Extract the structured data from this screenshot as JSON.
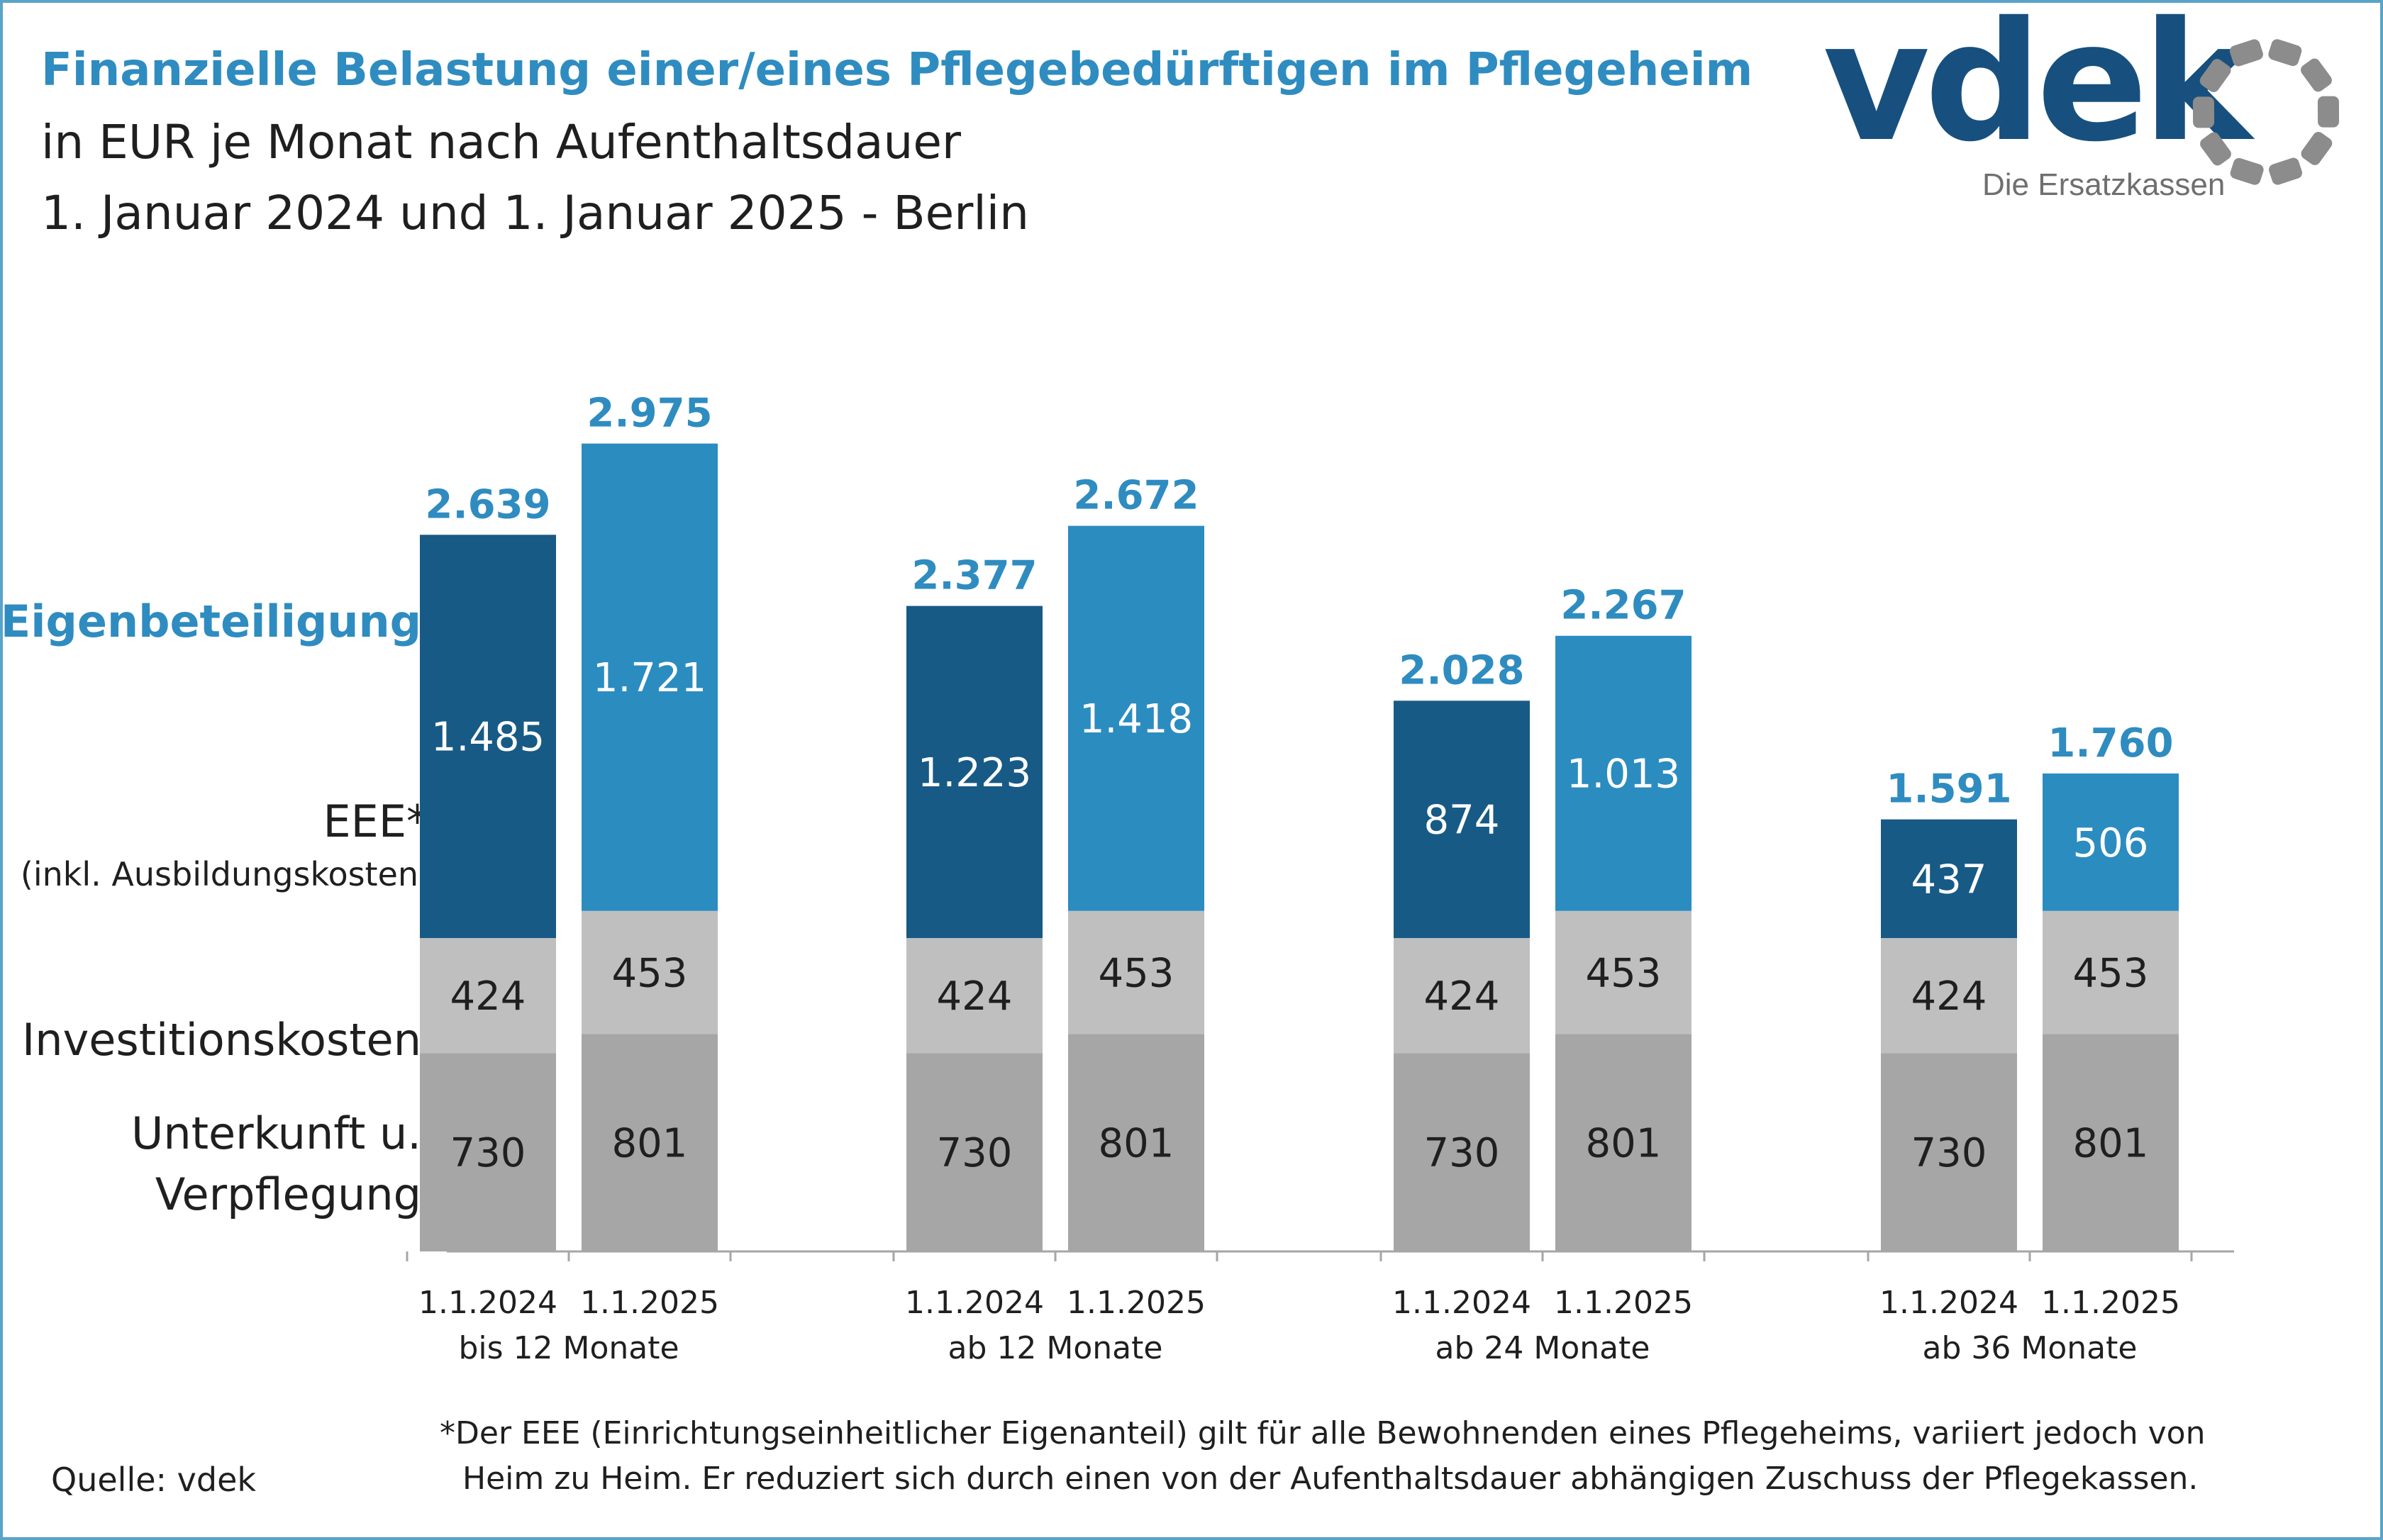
{
  "header": {
    "title": "Finanzielle Belastung einer/eines Pflegebedürftigen im Pflegeheim",
    "subtitle": "in EUR je Monat nach Aufenthaltsdauer",
    "daterange": "1. Januar 2024 und 1. Januar 2025 - Berlin"
  },
  "logo": {
    "text": "vdek",
    "tagline": "Die Ersatzkassen",
    "icon": "vdek-circle-logo-icon",
    "colors": {
      "text": "#17507e",
      "mark": "#8c8c8c"
    }
  },
  "legend_labels": {
    "eigen": "Eigenbeteiligung",
    "eee": "EEE*",
    "eee_sub": "(inkl. Ausbildungskosten)",
    "invest": "Investitionskosten",
    "unter_line1": "Unterkunft u.",
    "unter_line2": "Verpflegung"
  },
  "colors": {
    "eee_2024": "#175a85",
    "eee_2025": "#2b8cc0",
    "investition": "#bfbfbf",
    "unterkunft": "#a6a6a6",
    "total_label": "#2f8cc0",
    "axis": "#a6a6a6"
  },
  "chart_data": {
    "type": "bar",
    "stacked": true,
    "groups": [
      "bis 12 Monate",
      "ab 12 Monate",
      "ab 24 Monate",
      "ab 36 Monate"
    ],
    "bar_labels": [
      "1.1.2024",
      "1.1.2025"
    ],
    "series": [
      {
        "name": "Unterkunft u. Verpflegung",
        "values": [
          [
            730,
            801
          ],
          [
            730,
            801
          ],
          [
            730,
            801
          ],
          [
            730,
            801
          ]
        ]
      },
      {
        "name": "Investitionskosten",
        "values": [
          [
            424,
            453
          ],
          [
            424,
            453
          ],
          [
            424,
            453
          ],
          [
            424,
            453
          ]
        ]
      },
      {
        "name": "EEE* (inkl. Ausbildungskosten)",
        "values": [
          [
            1485,
            1721
          ],
          [
            1223,
            1418
          ],
          [
            874,
            1013
          ],
          [
            437,
            506
          ]
        ]
      }
    ],
    "value_labels": {
      "unterkunft": [
        [
          "730",
          "801"
        ],
        [
          "730",
          "801"
        ],
        [
          "730",
          "801"
        ],
        [
          "730",
          "801"
        ]
      ],
      "investition": [
        [
          "424",
          "453"
        ],
        [
          "424",
          "453"
        ],
        [
          "424",
          "453"
        ],
        [
          "424",
          "453"
        ]
      ],
      "eee": [
        [
          "1.485",
          "1.721"
        ],
        [
          "1.223",
          "1.418"
        ],
        [
          "874",
          "1.013"
        ],
        [
          "437",
          "506"
        ]
      ]
    },
    "totals": [
      [
        2639,
        2975
      ],
      [
        2377,
        2672
      ],
      [
        2028,
        2267
      ],
      [
        1591,
        1760
      ]
    ],
    "total_labels": [
      [
        "2.639",
        "2.975"
      ],
      [
        "2.377",
        "2.672"
      ],
      [
        "2.028",
        "2.267"
      ],
      [
        "1.591",
        "1.760"
      ]
    ],
    "unit": "EUR je Monat",
    "ylim": [
      0,
      3100
    ],
    "grid": false
  },
  "source": "Quelle: vdek",
  "footnote": {
    "line1": "*Der EEE (Einrichtungseinheitlicher Eigenanteil) gilt für alle Bewohnenden eines Pflegeheims, variiert jedoch von",
    "line2": "Heim zu Heim. Er reduziert sich durch einen von der Aufenthaltsdauer abhängigen Zuschuss der Pflegekassen."
  }
}
